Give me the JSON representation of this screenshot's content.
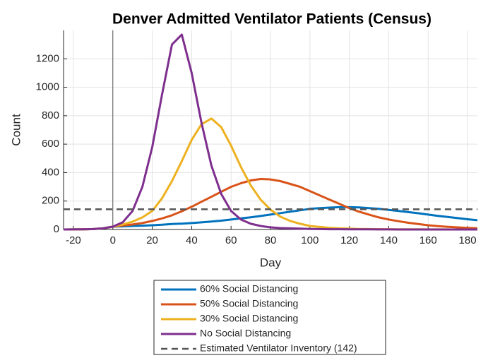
{
  "chart_data": {
    "type": "line",
    "title": "Denver Admitted Ventilator Patients (Census)",
    "xlabel": "Day",
    "ylabel": "Count",
    "x": [
      -25,
      -20,
      -15,
      -10,
      -5,
      0,
      5,
      10,
      15,
      20,
      25,
      30,
      35,
      40,
      45,
      50,
      55,
      60,
      65,
      70,
      75,
      80,
      85,
      90,
      95,
      100,
      105,
      110,
      115,
      120,
      125,
      130,
      135,
      140,
      145,
      150,
      155,
      160,
      165,
      170,
      175,
      180,
      185
    ],
    "series": [
      {
        "name": "60% Social Distancing",
        "color": "#0072bd",
        "values": [
          0,
          0.5,
          1,
          3,
          8,
          20,
          22,
          25,
          27,
          30,
          34,
          38,
          41,
          45,
          50,
          56,
          62,
          70,
          78,
          86,
          95,
          105,
          115,
          125,
          135,
          145,
          150,
          154,
          157,
          157,
          155,
          150,
          145,
          138,
          130,
          122,
          114,
          105,
          96,
          88,
          80,
          72,
          65
        ]
      },
      {
        "name": "50% Social Distancing",
        "color": "#d95319",
        "values": [
          0,
          0.5,
          1,
          3,
          8,
          20,
          28,
          35,
          45,
          60,
          78,
          100,
          128,
          160,
          195,
          230,
          265,
          300,
          325,
          345,
          355,
          352,
          340,
          320,
          300,
          270,
          240,
          210,
          180,
          150,
          125,
          105,
          85,
          70,
          58,
          47,
          38,
          30,
          24,
          19,
          15,
          11,
          9
        ]
      },
      {
        "name": "30% Social Distancing",
        "color": "#edb120",
        "values": [
          0,
          0.5,
          1,
          3,
          8,
          20,
          35,
          55,
          85,
          130,
          220,
          340,
          480,
          630,
          740,
          780,
          720,
          590,
          440,
          310,
          210,
          140,
          90,
          60,
          40,
          25,
          18,
          12,
          8,
          6,
          4,
          3,
          2,
          2,
          1,
          1,
          1,
          0.5,
          0.5,
          0.5,
          0,
          0,
          0
        ]
      },
      {
        "name": "No Social Distancing",
        "color": "#7e2f8e",
        "values": [
          0,
          0.5,
          1,
          3,
          8,
          20,
          50,
          130,
          300,
          580,
          950,
          1300,
          1370,
          1100,
          750,
          450,
          250,
          130,
          70,
          40,
          25,
          15,
          10,
          8,
          6,
          4,
          3,
          2,
          2,
          1,
          1,
          1,
          0.5,
          0.5,
          0,
          0,
          0,
          0,
          0,
          0,
          0,
          0,
          0
        ]
      }
    ],
    "reference_line": {
      "name": "Estimated Ventilator Inventory (142)",
      "value": 142,
      "color": "#555555"
    },
    "xlim": [
      -25,
      185
    ],
    "xticks": [
      -20,
      0,
      20,
      40,
      60,
      80,
      100,
      120,
      140,
      160,
      180
    ],
    "ylim": [
      0,
      1400
    ],
    "yticks": [
      0,
      200,
      400,
      600,
      800,
      1000,
      1200
    ],
    "grid": true,
    "legend": "below"
  }
}
